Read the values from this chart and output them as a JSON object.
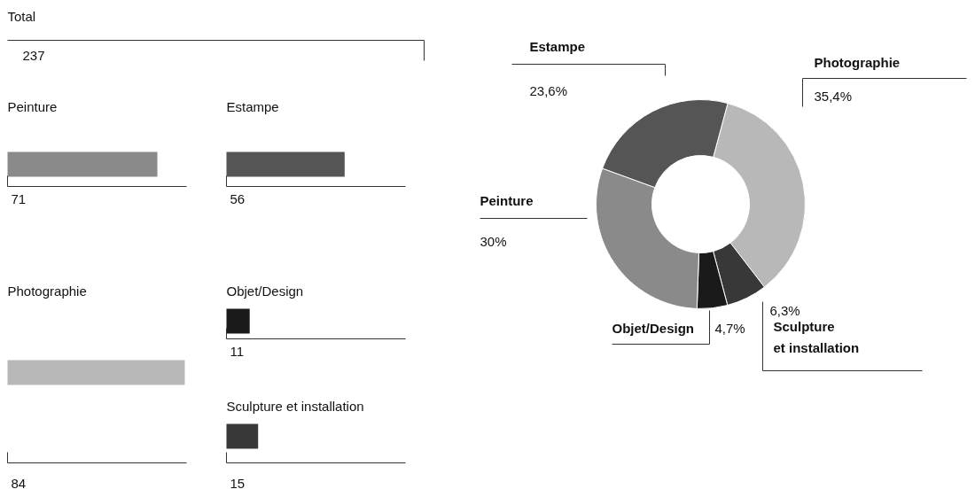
{
  "chart_data": [
    {
      "type": "other",
      "title": "Total",
      "totals": [
        "237"
      ],
      "categories": [
        "Peinture",
        "Estampe",
        "Photographie",
        "Objet/Design",
        "Sculpture et installation"
      ],
      "values": [
        71,
        56,
        84,
        11,
        15
      ],
      "colors": [
        "#8a8a8a",
        "#555555",
        "#b8b8b8",
        "#1a1a1a",
        "#383838"
      ],
      "data_labels": true
    },
    {
      "type": "donut",
      "categories": [
        "Photographie",
        "Sculpture\net installation",
        "Objet/Design",
        "Peinture",
        "Estampe"
      ],
      "values": [
        35.4,
        6.3,
        4.7,
        30,
        23.6
      ],
      "colors": [
        "#b8b8b8",
        "#383838",
        "#1a1a1a",
        "#8a8a8a",
        "#555555"
      ],
      "value_labels": [
        "35,4%",
        "6,3%",
        "4,7%",
        "30%",
        "23,6%"
      ]
    }
  ]
}
